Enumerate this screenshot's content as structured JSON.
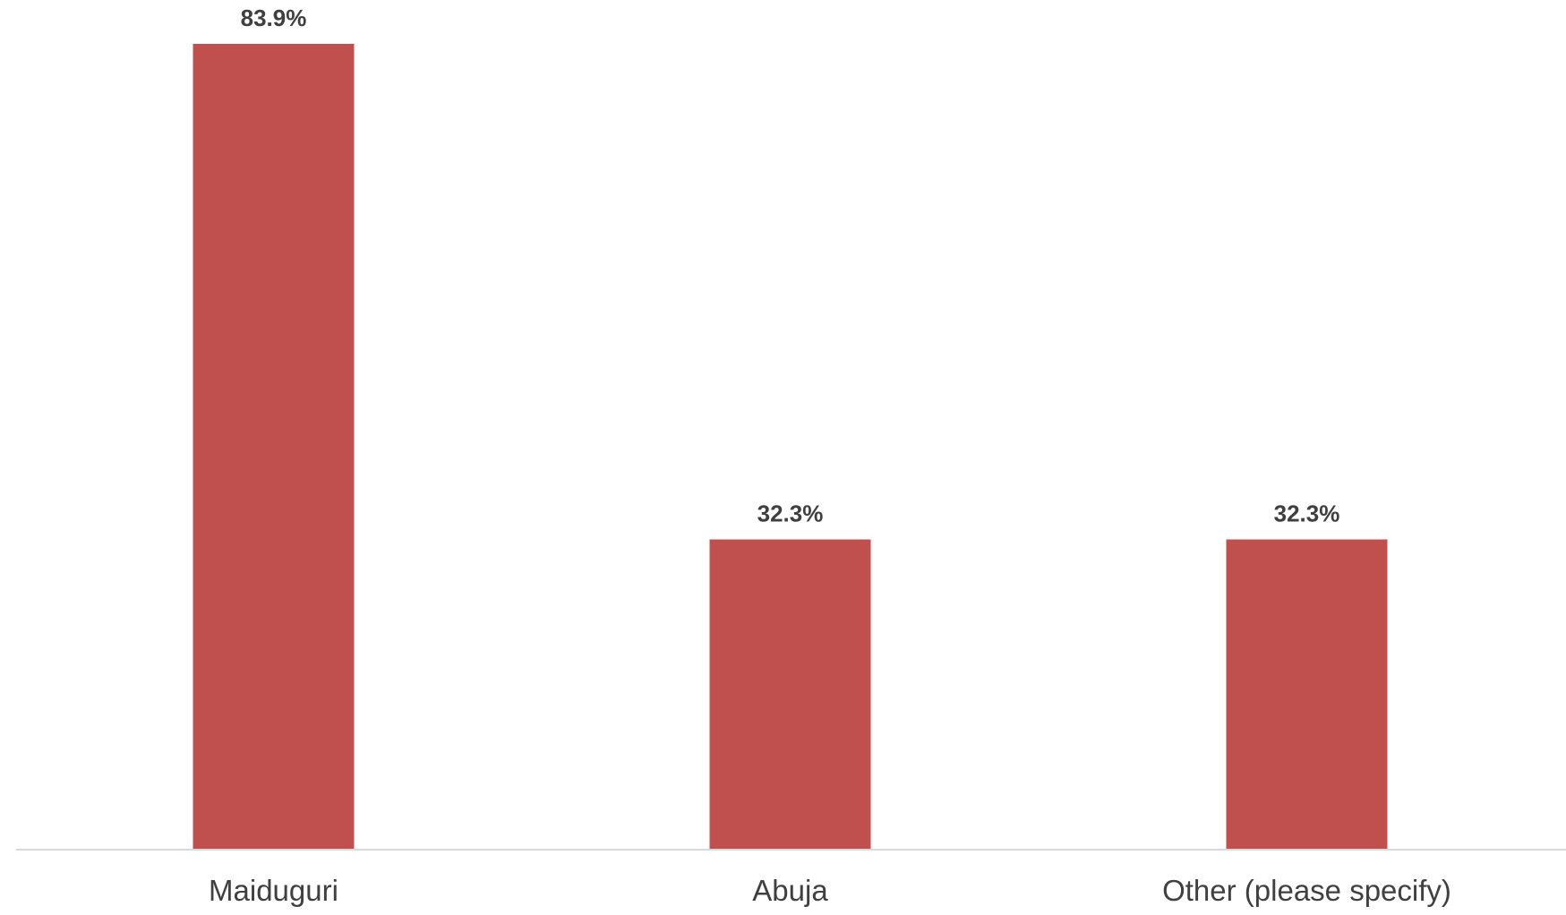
{
  "chart_data": {
    "type": "bar",
    "categories": [
      "Maiduguri",
      "Abuja",
      "Other (please specify)"
    ],
    "values": [
      83.9,
      32.3,
      32.3
    ],
    "value_labels": [
      "83.9%",
      "32.3%",
      "32.3%"
    ],
    "unit": "%",
    "title": "",
    "xlabel": "",
    "ylabel": "",
    "ylim": [
      0,
      90
    ],
    "grid": false,
    "legend": "none",
    "colors": {
      "bar": "#c0504d",
      "axis": "#d9d9d9",
      "label": "#404040"
    }
  }
}
